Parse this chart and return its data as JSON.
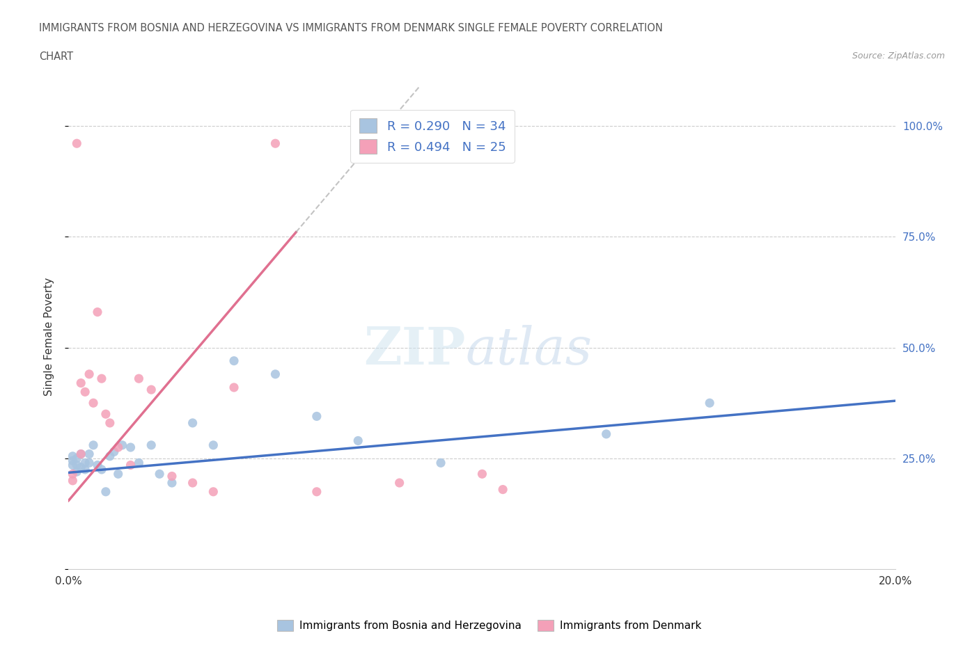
{
  "title_line1": "IMMIGRANTS FROM BOSNIA AND HERZEGOVINA VS IMMIGRANTS FROM DENMARK SINGLE FEMALE POVERTY CORRELATION",
  "title_line2": "CHART",
  "source": "Source: ZipAtlas.com",
  "ylabel": "Single Female Poverty",
  "xmin": 0.0,
  "xmax": 0.2,
  "ymin": 0.0,
  "ymax": 1.05,
  "yticks": [
    0.0,
    0.25,
    0.5,
    0.75,
    1.0
  ],
  "ytick_labels": [
    "",
    "25.0%",
    "50.0%",
    "75.0%",
    "100.0%"
  ],
  "xticks": [
    0.0,
    0.05,
    0.1,
    0.15,
    0.2
  ],
  "xtick_labels": [
    "0.0%",
    "",
    "",
    "",
    "20.0%"
  ],
  "r_bosnia": 0.29,
  "n_bosnia": 34,
  "r_denmark": 0.494,
  "n_denmark": 25,
  "color_bosnia": "#a8c4e0",
  "color_denmark": "#f4a0b8",
  "color_line_bosnia": "#4472c4",
  "color_line_denmark": "#e07090",
  "bosnia_x": [
    0.001,
    0.001,
    0.001,
    0.002,
    0.002,
    0.002,
    0.003,
    0.003,
    0.004,
    0.004,
    0.005,
    0.005,
    0.006,
    0.007,
    0.008,
    0.009,
    0.01,
    0.011,
    0.012,
    0.013,
    0.015,
    0.017,
    0.02,
    0.022,
    0.025,
    0.03,
    0.035,
    0.04,
    0.05,
    0.06,
    0.07,
    0.09,
    0.13,
    0.155
  ],
  "bosnia_y": [
    0.235,
    0.245,
    0.255,
    0.22,
    0.235,
    0.25,
    0.23,
    0.26,
    0.24,
    0.225,
    0.24,
    0.26,
    0.28,
    0.235,
    0.225,
    0.175,
    0.255,
    0.265,
    0.215,
    0.28,
    0.275,
    0.24,
    0.28,
    0.215,
    0.195,
    0.33,
    0.28,
    0.47,
    0.44,
    0.345,
    0.29,
    0.24,
    0.305,
    0.375
  ],
  "denmark_x": [
    0.001,
    0.001,
    0.002,
    0.003,
    0.003,
    0.004,
    0.005,
    0.006,
    0.007,
    0.008,
    0.009,
    0.01,
    0.012,
    0.015,
    0.017,
    0.02,
    0.025,
    0.03,
    0.035,
    0.04,
    0.05,
    0.06,
    0.08,
    0.1,
    0.105
  ],
  "denmark_y": [
    0.2,
    0.215,
    0.96,
    0.26,
    0.42,
    0.4,
    0.44,
    0.375,
    0.58,
    0.43,
    0.35,
    0.33,
    0.275,
    0.235,
    0.43,
    0.405,
    0.21,
    0.195,
    0.175,
    0.41,
    0.96,
    0.175,
    0.195,
    0.215,
    0.18
  ],
  "line_bosnia_x0": 0.0,
  "line_bosnia_y0": 0.218,
  "line_bosnia_x1": 0.2,
  "line_bosnia_y1": 0.38,
  "line_denmark_x0": 0.0,
  "line_denmark_y0": 0.155,
  "line_denmark_x1": 0.055,
  "line_denmark_y1": 0.76
}
